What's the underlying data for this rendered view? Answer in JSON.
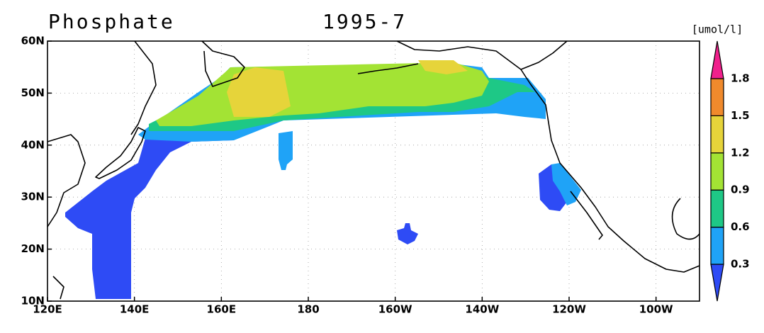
{
  "header": {
    "title": "Phosphate",
    "date": "1995-7",
    "unit": "[umol/l]"
  },
  "map": {
    "lon_ticks": [
      {
        "value": 120,
        "label": "120E"
      },
      {
        "value": 140,
        "label": "140E"
      },
      {
        "value": 160,
        "label": "160E"
      },
      {
        "value": 180,
        "label": "180"
      },
      {
        "value": 200,
        "label": "160W"
      },
      {
        "value": 220,
        "label": "140W"
      },
      {
        "value": 240,
        "label": "120W"
      },
      {
        "value": 260,
        "label": "100W"
      }
    ],
    "lat_ticks": [
      {
        "value": 10,
        "label": "10N"
      },
      {
        "value": 20,
        "label": "20N"
      },
      {
        "value": 30,
        "label": "30N"
      },
      {
        "value": 40,
        "label": "40N"
      },
      {
        "value": 50,
        "label": "50N"
      },
      {
        "value": 60,
        "label": "60N"
      }
    ],
    "lonlim": [
      120,
      270
    ],
    "latlim": [
      10,
      60
    ]
  },
  "colorbar": {
    "levels": [
      0.3,
      0.6,
      0.9,
      1.2,
      1.5,
      1.8
    ],
    "colors": [
      "#2e4bf5",
      "#1fa3f7",
      "#1ec886",
      "#a3e334",
      "#e6d43a",
      "#f08a2c",
      "#f0208c"
    ]
  }
}
